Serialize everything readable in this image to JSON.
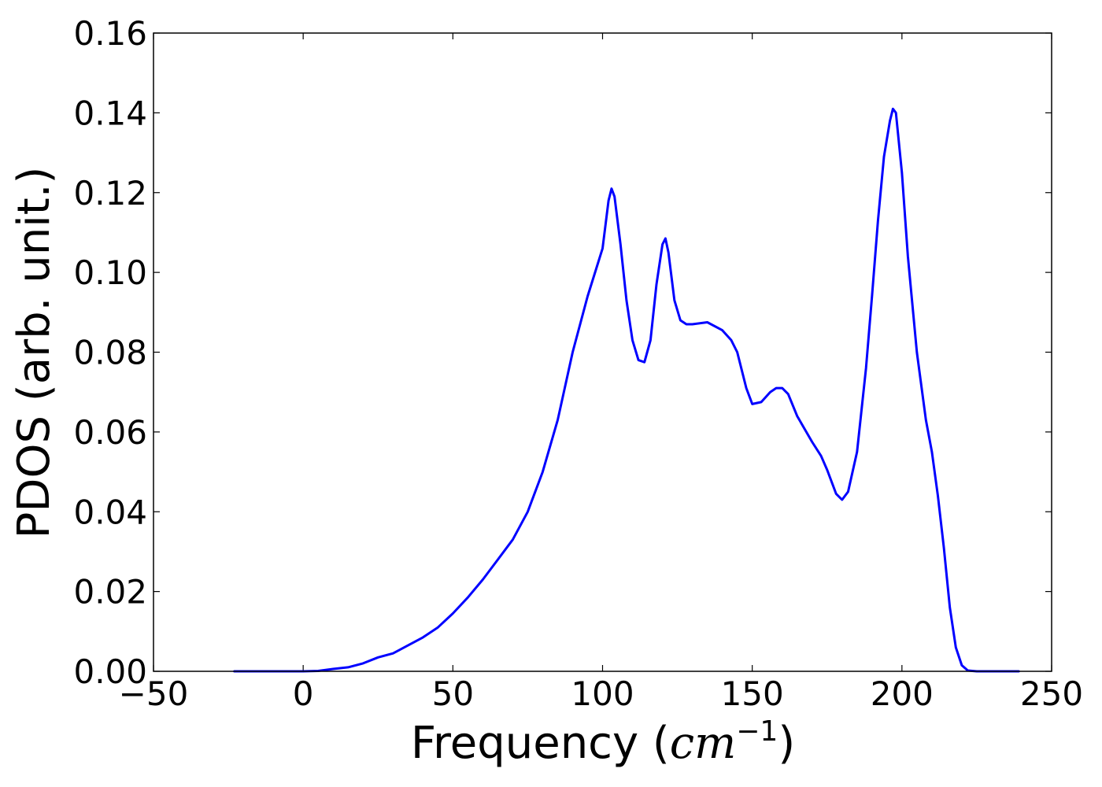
{
  "chart_data": {
    "type": "line",
    "xlabel_prefix": "Frequency (",
    "xlabel_math": "cm",
    "xlabel_exponent": "−1",
    "xlabel_suffix": ")",
    "ylabel": "PDOS (arb. unit.)",
    "xlim": [
      -50,
      250
    ],
    "ylim": [
      0,
      0.16
    ],
    "xticks": [
      -50,
      0,
      50,
      100,
      150,
      200,
      250
    ],
    "xtick_labels": [
      "−50",
      "0",
      "50",
      "100",
      "150",
      "200",
      "250"
    ],
    "yticks": [
      0,
      0.02,
      0.04,
      0.06,
      0.08,
      0.1,
      0.12,
      0.14,
      0.16
    ],
    "ytick_labels": [
      "0.00",
      "0.02",
      "0.04",
      "0.06",
      "0.08",
      "0.10",
      "0.12",
      "0.14",
      "0.16"
    ],
    "grid": false,
    "series": [
      {
        "color": "#0000ff",
        "x": [
          -23,
          0,
          5,
          10,
          15,
          20,
          25,
          30,
          35,
          40,
          45,
          50,
          55,
          60,
          65,
          70,
          75,
          80,
          85,
          90,
          95,
          100,
          102,
          103,
          104,
          106,
          108,
          110,
          112,
          114,
          116,
          118,
          120,
          121,
          122,
          124,
          126,
          128,
          130,
          135,
          140,
          143,
          145,
          148,
          150,
          153,
          156,
          158,
          160,
          162,
          165,
          170,
          173,
          175,
          178,
          180,
          182,
          185,
          188,
          190,
          192,
          194,
          196,
          197,
          198,
          200,
          202,
          205,
          208,
          210,
          212,
          214,
          216,
          218,
          220,
          222,
          225,
          230,
          235,
          239
        ],
        "y": [
          0,
          0,
          0.0001,
          0.0006,
          0.001,
          0.002,
          0.0035,
          0.0045,
          0.0065,
          0.0085,
          0.011,
          0.0145,
          0.0185,
          0.023,
          0.028,
          0.033,
          0.04,
          0.05,
          0.063,
          0.08,
          0.094,
          0.106,
          0.118,
          0.121,
          0.119,
          0.107,
          0.093,
          0.083,
          0.078,
          0.0775,
          0.083,
          0.097,
          0.107,
          0.1085,
          0.105,
          0.093,
          0.088,
          0.087,
          0.087,
          0.0875,
          0.0855,
          0.083,
          0.08,
          0.071,
          0.067,
          0.0675,
          0.07,
          0.071,
          0.071,
          0.0695,
          0.064,
          0.0575,
          0.054,
          0.0505,
          0.0445,
          0.043,
          0.045,
          0.055,
          0.076,
          0.094,
          0.113,
          0.129,
          0.138,
          0.141,
          0.14,
          0.125,
          0.104,
          0.08,
          0.063,
          0.055,
          0.044,
          0.031,
          0.016,
          0.006,
          0.0015,
          0.0002,
          0,
          0,
          0,
          0
        ]
      }
    ]
  }
}
